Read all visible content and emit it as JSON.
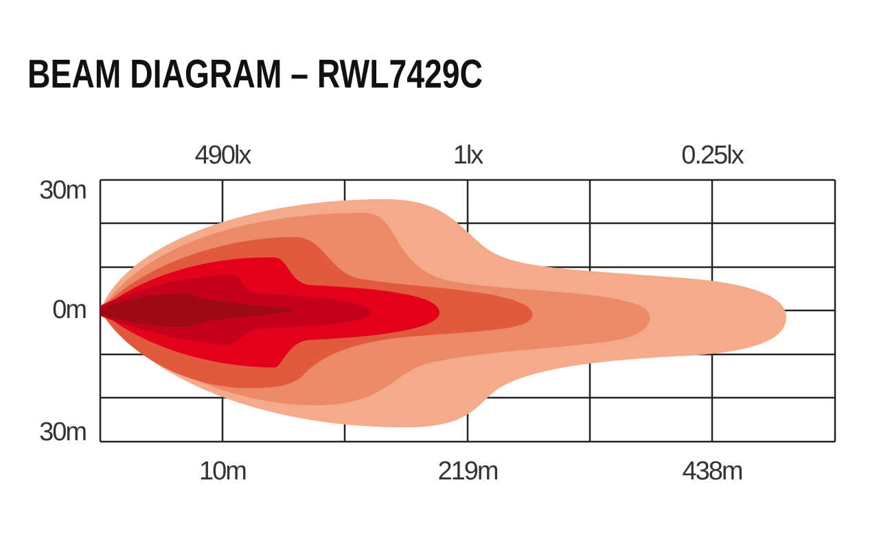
{
  "title": "BEAM DIAGRAM – RWL7429C",
  "lux_labels": [
    "490lx",
    "1lx",
    "0.25lx"
  ],
  "height_labels": [
    "30m",
    "0m",
    "30m"
  ],
  "distance_labels": [
    "10m",
    "219m",
    "438m"
  ]
}
